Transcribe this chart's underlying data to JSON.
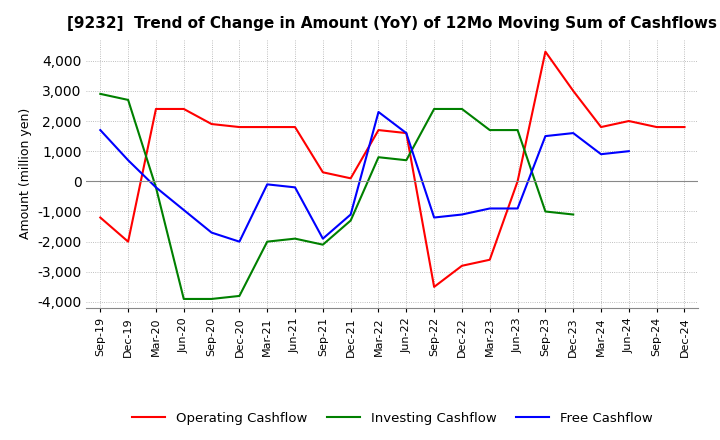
{
  "title": "[9232]  Trend of Change in Amount (YoY) of 12Mo Moving Sum of Cashflows",
  "ylabel": "Amount (million yen)",
  "x_labels": [
    "Sep-19",
    "Dec-19",
    "Mar-20",
    "Jun-20",
    "Sep-20",
    "Dec-20",
    "Mar-21",
    "Jun-21",
    "Sep-21",
    "Dec-21",
    "Mar-22",
    "Jun-22",
    "Sep-22",
    "Dec-22",
    "Mar-23",
    "Jun-23",
    "Sep-23",
    "Dec-23",
    "Mar-24",
    "Jun-24",
    "Sep-24",
    "Dec-24"
  ],
  "operating": [
    -1200,
    -2000,
    2400,
    null,
    null,
    null,
    null,
    null,
    null,
    null,
    1700,
    1600,
    -3500,
    null,
    null,
    null,
    4300,
    null,
    1800,
    2000,
    null,
    null
  ],
  "operating_full": [
    -1200,
    -2000,
    2400,
    2400,
    1900,
    1800,
    1800,
    1800,
    300,
    100,
    1700,
    1600,
    -3500,
    -2800,
    -2600,
    0,
    4300,
    3000,
    1800,
    2000,
    1800,
    1800
  ],
  "investing_full": [
    2900,
    2700,
    -200,
    -3900,
    -3900,
    -3800,
    -2000,
    -1900,
    -2100,
    -1300,
    800,
    700,
    2400,
    2400,
    1700,
    1700,
    -1000,
    -1100,
    null,
    null,
    null,
    null
  ],
  "free_full": [
    1700,
    700,
    -200,
    null,
    -1700,
    -2000,
    -100,
    -200,
    -1900,
    -1100,
    2300,
    1600,
    -1200,
    -1100,
    -900,
    -900,
    1500,
    1600,
    900,
    1000,
    null,
    null
  ],
  "ylim": [
    -4200,
    4700
  ],
  "yticks": [
    -4000,
    -3000,
    -2000,
    -1000,
    0,
    1000,
    2000,
    3000,
    4000
  ],
  "operating_color": "#ff0000",
  "investing_color": "#008000",
  "free_color": "#0000ff",
  "bg_color": "#ffffff",
  "grid_color": "#aaaaaa"
}
